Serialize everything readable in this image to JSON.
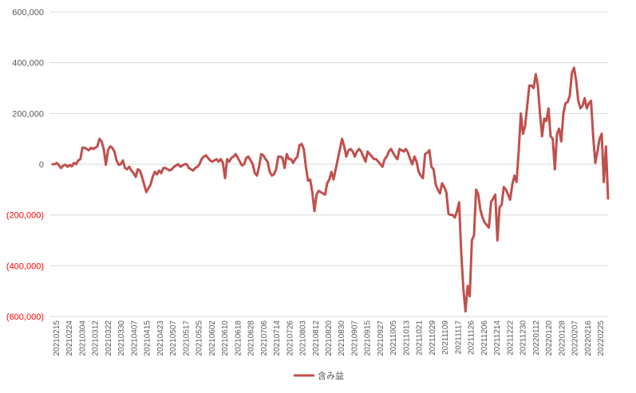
{
  "chart_data": {
    "type": "line",
    "title": "",
    "xlabel": "",
    "ylabel": "",
    "ylim": [
      -600000,
      600000
    ],
    "y_ticks": [
      {
        "value": 600000,
        "label": "600,000"
      },
      {
        "value": 400000,
        "label": "400,000"
      },
      {
        "value": 200000,
        "label": "200,000"
      },
      {
        "value": 0,
        "label": "0"
      },
      {
        "value": -200000,
        "label": "(200,000)"
      },
      {
        "value": -400000,
        "label": "(400,000)"
      },
      {
        "value": -600000,
        "label": "(600,000)"
      }
    ],
    "x_tick_labels": [
      "20210215",
      "20210224",
      "20210304",
      "20210312",
      "20210322",
      "20210330",
      "20210407",
      "20210415",
      "20210423",
      "20210507",
      "20210517",
      "20210525",
      "20210602",
      "20210610",
      "20210618",
      "20210628",
      "20210706",
      "20210714",
      "20210726",
      "20210803",
      "20210812",
      "20210820",
      "20210830",
      "20210907",
      "20210915",
      "20210927",
      "20211005",
      "20211013",
      "20211021",
      "20211029",
      "20211109",
      "20211117",
      "20211126",
      "20211206",
      "20211214",
      "20211222",
      "20211230",
      "20220112",
      "20220120",
      "20220128",
      "20220207",
      "20220216",
      "20220225"
    ],
    "grid": true,
    "legend": "bottom",
    "series": [
      {
        "name": "含み益",
        "color": "#c0504d",
        "values": [
          0,
          0,
          5000,
          -5000,
          -15000,
          -5000,
          -2000,
          -10000,
          -3000,
          -8000,
          5000,
          0,
          15000,
          20000,
          65000,
          65000,
          60000,
          55000,
          65000,
          60000,
          65000,
          70000,
          100000,
          90000,
          60000,
          -2000,
          55000,
          70000,
          65000,
          50000,
          15000,
          -2000,
          0,
          15000,
          -15000,
          -20000,
          -10000,
          -25000,
          -35000,
          -50000,
          -20000,
          -25000,
          -50000,
          -80000,
          -110000,
          -95000,
          -80000,
          -50000,
          -30000,
          -40000,
          -25000,
          -35000,
          -15000,
          -15000,
          -20000,
          -25000,
          -20000,
          -10000,
          -5000,
          0,
          -10000,
          -5000,
          0,
          0,
          -15000,
          -20000,
          -25000,
          -15000,
          -10000,
          0,
          20000,
          30000,
          35000,
          25000,
          15000,
          10000,
          15000,
          20000,
          10000,
          20000,
          5000,
          -55000,
          20000,
          10000,
          25000,
          30000,
          40000,
          25000,
          10000,
          -5000,
          0,
          25000,
          30000,
          15000,
          0,
          -35000,
          -45000,
          -10000,
          40000,
          35000,
          20000,
          10000,
          -30000,
          -45000,
          -40000,
          -20000,
          30000,
          30000,
          25000,
          -15000,
          40000,
          20000,
          20000,
          5000,
          20000,
          30000,
          75000,
          80000,
          60000,
          -10000,
          -65000,
          -60000,
          -110000,
          -185000,
          -120000,
          -105000,
          -110000,
          -115000,
          -120000,
          -75000,
          -60000,
          -30000,
          -60000,
          -20000,
          20000,
          60000,
          100000,
          70000,
          30000,
          55000,
          60000,
          50000,
          30000,
          50000,
          60000,
          50000,
          30000,
          10000,
          50000,
          40000,
          30000,
          20000,
          20000,
          10000,
          0,
          -10000,
          20000,
          30000,
          50000,
          60000,
          45000,
          30000,
          20000,
          60000,
          55000,
          50000,
          60000,
          45000,
          20000,
          0,
          30000,
          10000,
          -30000,
          -45000,
          -55000,
          40000,
          45000,
          55000,
          -10000,
          -20000,
          -80000,
          -100000,
          -115000,
          -75000,
          -90000,
          -110000,
          -195000,
          -200000,
          -200000,
          -210000,
          -185000,
          -150000,
          -350000,
          -490000,
          -580000,
          -480000,
          -520000,
          -300000,
          -280000,
          -100000,
          -120000,
          -180000,
          -210000,
          -230000,
          -240000,
          -250000,
          -150000,
          -135000,
          -120000,
          -300000,
          -170000,
          -160000,
          -90000,
          -100000,
          -120000,
          -140000,
          -80000,
          -45000,
          -70000,
          50000,
          200000,
          120000,
          150000,
          230000,
          310000,
          310000,
          300000,
          355000,
          310000,
          200000,
          110000,
          180000,
          170000,
          220000,
          110000,
          100000,
          -20000,
          120000,
          140000,
          90000,
          200000,
          240000,
          245000,
          270000,
          360000,
          380000,
          330000,
          250000,
          220000,
          230000,
          260000,
          220000,
          240000,
          250000,
          110000,
          5000,
          50000,
          100000,
          120000,
          -70000,
          70000,
          -135000
        ]
      }
    ]
  }
}
